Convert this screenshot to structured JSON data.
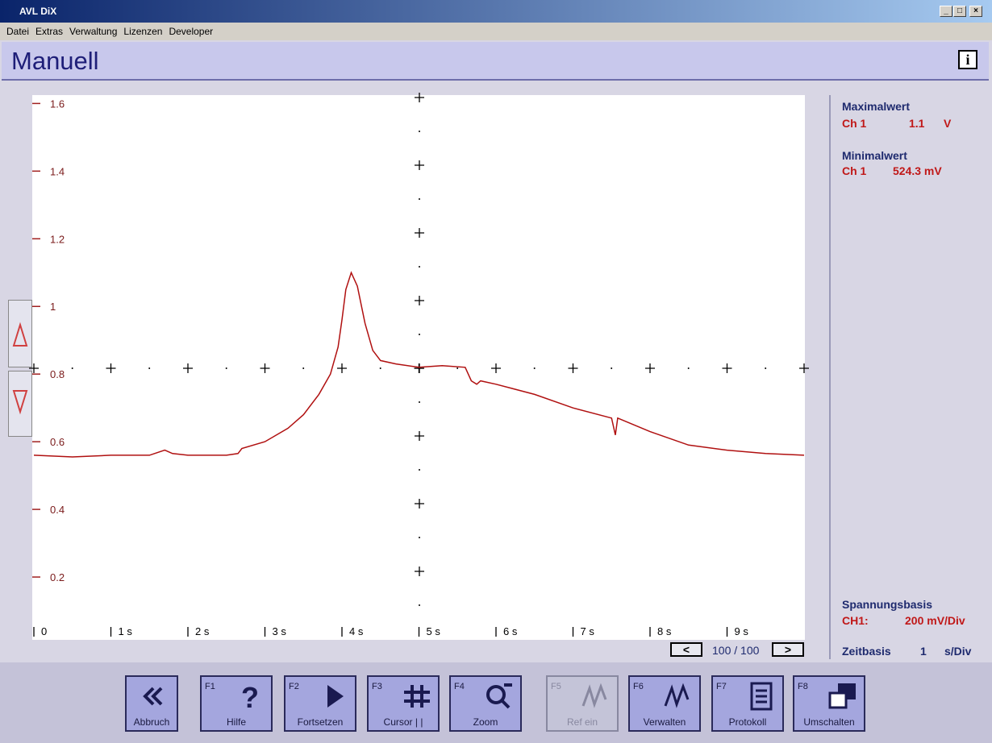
{
  "window": {
    "title": "AVL DiX"
  },
  "menu": [
    "Datei",
    "Extras",
    "Verwaltung",
    "Lizenzen",
    "Developer"
  ],
  "header": {
    "title": "Manuell"
  },
  "chart_data": {
    "type": "line",
    "color": "#b01010",
    "xlim": [
      0,
      10
    ],
    "xticks": [
      0,
      {
        "value": 1,
        "label": "1 s"
      },
      {
        "value": 2,
        "label": "2 s"
      },
      {
        "value": 3,
        "label": "3 s"
      },
      {
        "value": 4,
        "label": "4 s"
      },
      {
        "value": 5,
        "label": "5 s"
      },
      {
        "value": 6,
        "label": "6 s"
      },
      {
        "value": 7,
        "label": "7 s"
      },
      {
        "value": 8,
        "label": "8 s"
      },
      {
        "value": 9,
        "label": "9 s"
      }
    ],
    "ylim": [
      0,
      1.62
    ],
    "yticks": [
      0.2,
      0.4,
      0.6,
      0.8,
      1,
      1.2,
      1.4,
      1.6
    ],
    "x": [
      0,
      0.5,
      1,
      1.5,
      1.7,
      1.8,
      2,
      2.5,
      2.65,
      2.7,
      3,
      3.3,
      3.5,
      3.7,
      3.85,
      3.95,
      4.0,
      4.05,
      4.12,
      4.2,
      4.3,
      4.4,
      4.5,
      4.7,
      5,
      5.3,
      5.6,
      5.68,
      5.75,
      5.8,
      6,
      6.5,
      7,
      7.5,
      7.55,
      7.58,
      8,
      8.5,
      9,
      9.5,
      10
    ],
    "values": [
      0.56,
      0.555,
      0.56,
      0.56,
      0.575,
      0.565,
      0.56,
      0.56,
      0.565,
      0.58,
      0.6,
      0.64,
      0.68,
      0.74,
      0.8,
      0.88,
      0.96,
      1.05,
      1.1,
      1.06,
      0.95,
      0.87,
      0.84,
      0.83,
      0.82,
      0.825,
      0.82,
      0.78,
      0.77,
      0.78,
      0.77,
      0.74,
      0.7,
      0.67,
      0.62,
      0.67,
      0.63,
      0.59,
      0.575,
      0.565,
      0.56
    ]
  },
  "side": {
    "max": {
      "title": "Maximalwert",
      "channel": "Ch 1",
      "value": "1.1",
      "unit": "V"
    },
    "min": {
      "title": "Minimalwert",
      "channel": "Ch 1",
      "value": "524.3 mV"
    },
    "voltage": {
      "title": "Spannungsbasis",
      "channel": "CH1:",
      "value": "200 mV/Div"
    },
    "time": {
      "title": "Zeitbasis",
      "value": "1",
      "unit": "s/Div"
    }
  },
  "pager": {
    "prev": "<",
    "text": "100 / 100",
    "next": ">"
  },
  "buttons": [
    {
      "label": "Abbruch"
    },
    {
      "key": "F1",
      "label": "Hilfe"
    },
    {
      "key": "F2",
      "label": "Fortsetzen"
    },
    {
      "key": "F3",
      "label": "Cursor | |"
    },
    {
      "key": "F4",
      "label": "Zoom"
    },
    {
      "key": "F5",
      "label": "Ref ein"
    },
    {
      "key": "F6",
      "label": "Verwalten"
    },
    {
      "key": "F7",
      "label": "Protokoll"
    },
    {
      "key": "F8",
      "label": "Umschalten"
    }
  ]
}
